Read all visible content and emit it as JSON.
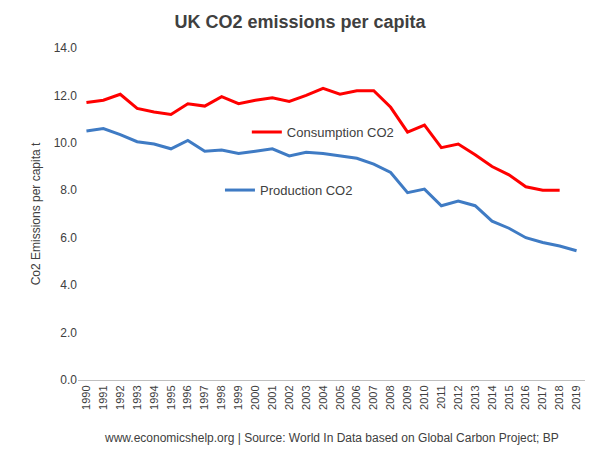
{
  "chart_data": {
    "type": "line",
    "title": "UK CO2 emissions per capita",
    "y_label": "Co2 Emissions per capita t",
    "source": "www.economicshelp.org | Source: World In Data based on Global Carbon Project; BP",
    "categories": [
      "1990",
      "1991",
      "1992",
      "1993",
      "1994",
      "1995",
      "1996",
      "1997",
      "1998",
      "1999",
      "2000",
      "2001",
      "2002",
      "2003",
      "2004",
      "2005",
      "2006",
      "2007",
      "2008",
      "2009",
      "2010",
      "2011",
      "2012",
      "2013",
      "2014",
      "2015",
      "2016",
      "2017",
      "2018",
      "2019"
    ],
    "series": [
      {
        "name": "Consumption CO2",
        "color": "#ff0000",
        "values": [
          11.7,
          11.8,
          12.05,
          11.45,
          11.3,
          11.2,
          11.65,
          11.55,
          11.95,
          11.65,
          11.8,
          11.9,
          11.75,
          12.0,
          12.3,
          12.05,
          12.2,
          12.2,
          11.5,
          10.45,
          10.75,
          9.8,
          9.95,
          9.5,
          9.0,
          8.65,
          8.15,
          8.0,
          8.0,
          null
        ]
      },
      {
        "name": "Production CO2",
        "color": "#3f7bc4",
        "values": [
          10.5,
          10.6,
          10.35,
          10.05,
          9.95,
          9.75,
          10.1,
          9.65,
          9.7,
          9.55,
          9.65,
          9.75,
          9.45,
          9.6,
          9.55,
          9.45,
          9.35,
          9.1,
          8.75,
          7.9,
          8.05,
          7.35,
          7.55,
          7.35,
          6.7,
          6.4,
          6.0,
          5.8,
          5.65,
          5.45
        ]
      }
    ],
    "ylim": [
      0,
      14
    ],
    "yticks": [
      {
        "value": 0,
        "label": "0.0"
      },
      {
        "value": 2,
        "label": "2.0"
      },
      {
        "value": 4,
        "label": "4.0"
      },
      {
        "value": 6,
        "label": "6.0"
      },
      {
        "value": 8,
        "label": "8.0"
      },
      {
        "value": 10,
        "label": "10.0"
      },
      {
        "value": 12,
        "label": "12.0"
      },
      {
        "value": 14,
        "label": "14.0"
      }
    ],
    "grid": false,
    "legend": "center"
  }
}
